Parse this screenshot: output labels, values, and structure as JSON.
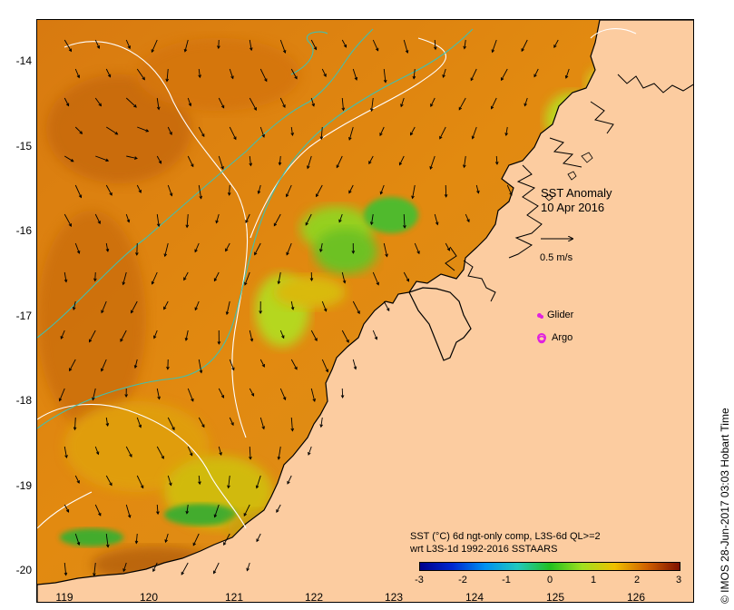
{
  "map": {
    "title_line1": "SST Anomaly",
    "title_line2": "10 Apr 2016",
    "speed_label": "0.5 m/s",
    "glider_label": "Glider",
    "argo_label": "Argo",
    "credit": "© IMOS 28-Jun-2017 03:03 Hobart Time",
    "lat_ticks": [
      "-14",
      "-15",
      "-16",
      "-17",
      "-18",
      "-19",
      "-20"
    ],
    "lon_ticks": [
      "119",
      "120",
      "121",
      "122",
      "123",
      "124",
      "125",
      "126"
    ],
    "lon_range": [
      118.65,
      126.75
    ],
    "lat_range": [
      -20.1,
      -13.5
    ],
    "land_color": "#fccca0",
    "marker_color": "#e020e0"
  },
  "colorbar": {
    "desc_line1": "SST (°C) 6d ngt-only comp, L3S-6d QL>=2",
    "desc_line2": "wrt L3S-1d 1992-2016 SSTAARS",
    "ticks": [
      "-3",
      "-2",
      "-1",
      "0",
      "1",
      "2",
      "3"
    ],
    "range": [
      -3,
      3
    ],
    "colors": [
      "#00008c",
      "#0028d0",
      "#0090f0",
      "#20c8c0",
      "#20c020",
      "#a0e020",
      "#f0c000",
      "#d06000",
      "#801000"
    ]
  }
}
